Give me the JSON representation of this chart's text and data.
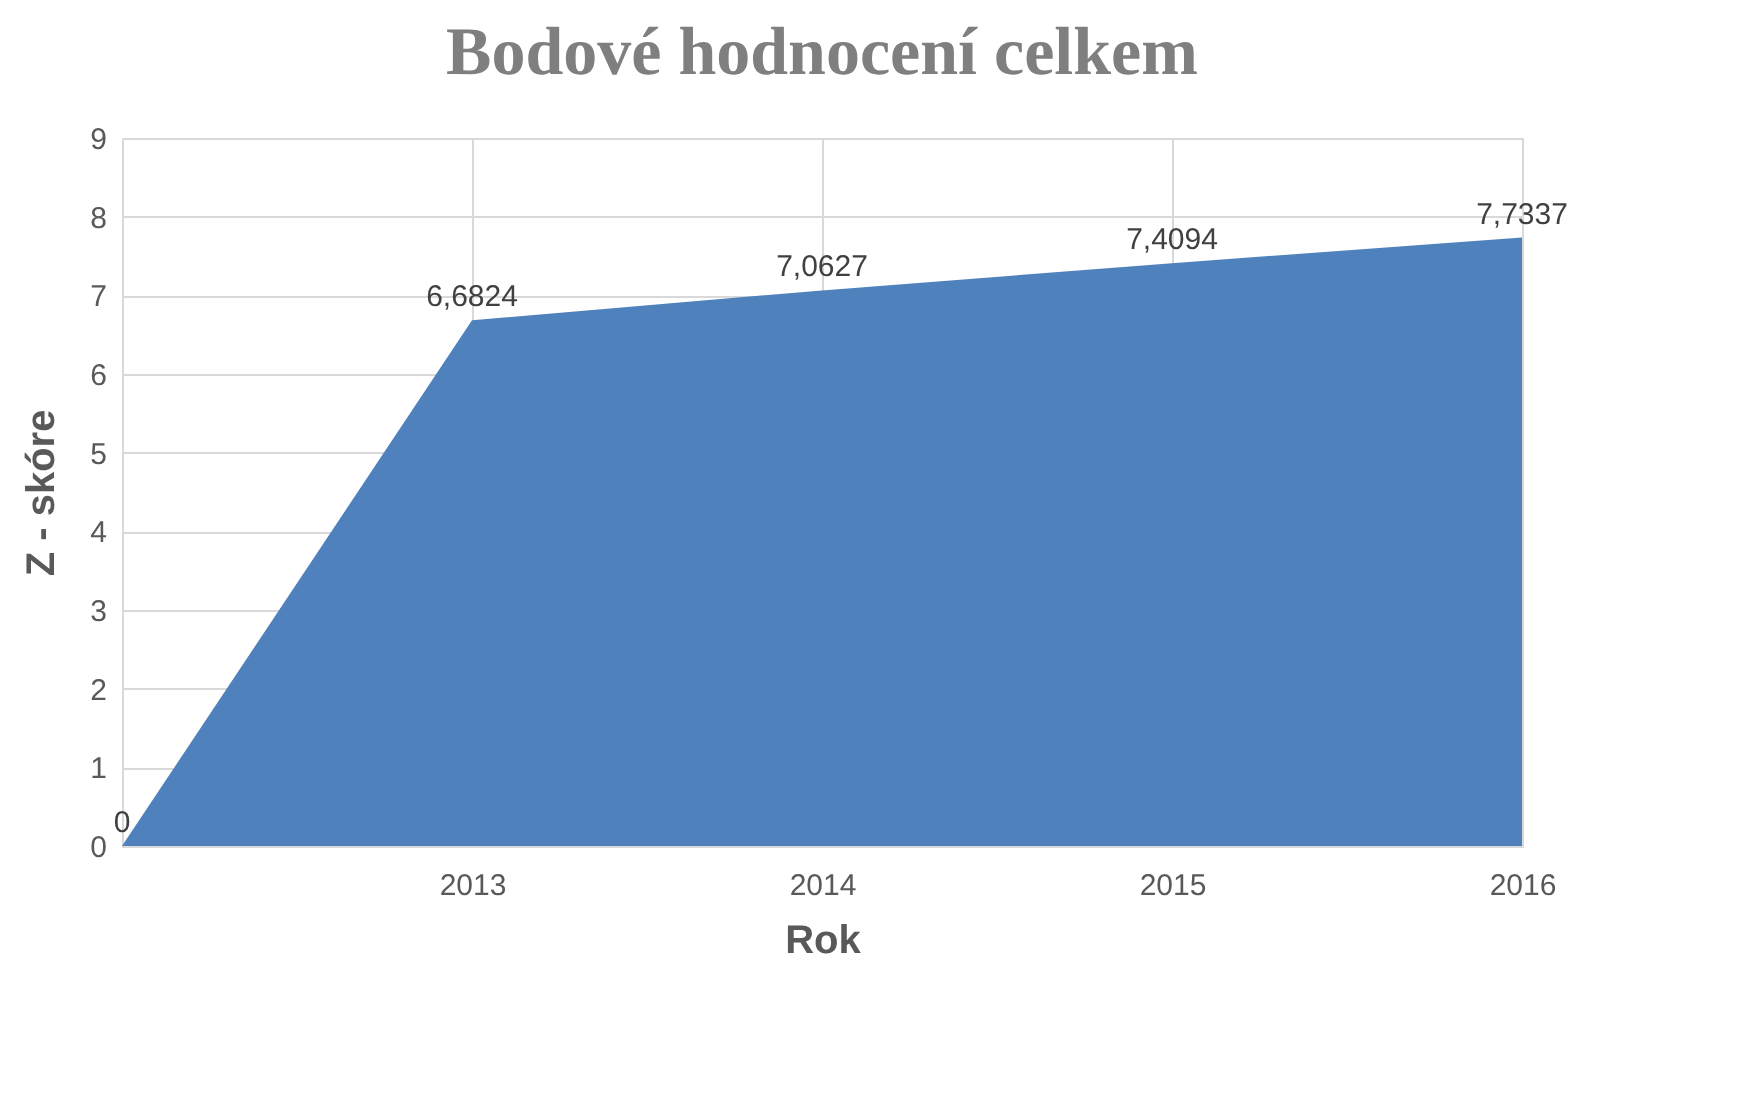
{
  "chart_data": {
    "type": "area",
    "title": "Bodové hodnocení celkem",
    "xlabel": "Rok",
    "ylabel": "Z - skóre",
    "categories": [
      null,
      "2013",
      "2014",
      "2015",
      "2016"
    ],
    "series": [
      {
        "color": "#4f81bd",
        "values": [
          0,
          6.6824,
          7.0627,
          7.4094,
          7.7337
        ],
        "value_labels": [
          "0",
          "6,6824",
          "7,0627",
          "7,4094",
          "7,7337"
        ]
      }
    ],
    "ylim": [
      0,
      9
    ],
    "yticks": [
      0,
      1,
      2,
      3,
      4,
      5,
      6,
      7,
      8,
      9
    ],
    "grid": true
  }
}
